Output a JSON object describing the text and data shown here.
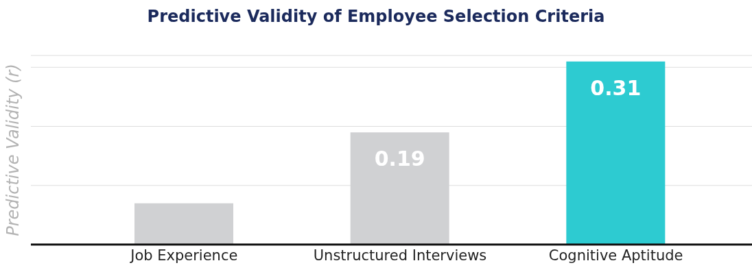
{
  "chart_data": {
    "type": "bar",
    "title": "Predictive Validity of Employee Selection Criteria",
    "ylabel": "Predictive Validity (r)",
    "categories": [
      "Job Experience",
      "Unstructured Interviews",
      "Cognitive Aptitude"
    ],
    "values": [
      0.07,
      0.19,
      0.31
    ],
    "colors": [
      "#d0d1d3",
      "#d0d1d3",
      "#2dcbd1"
    ],
    "value_labels": [
      null,
      "0.19",
      "0.31"
    ],
    "ylim": [
      0,
      0.32
    ],
    "yticks": [
      {
        "value": 0.1,
        "label": null
      },
      {
        "value": 0.2,
        "label": null
      },
      {
        "value": 0.3,
        "label": null
      }
    ],
    "grid": "y",
    "tick_labels": "x"
  }
}
